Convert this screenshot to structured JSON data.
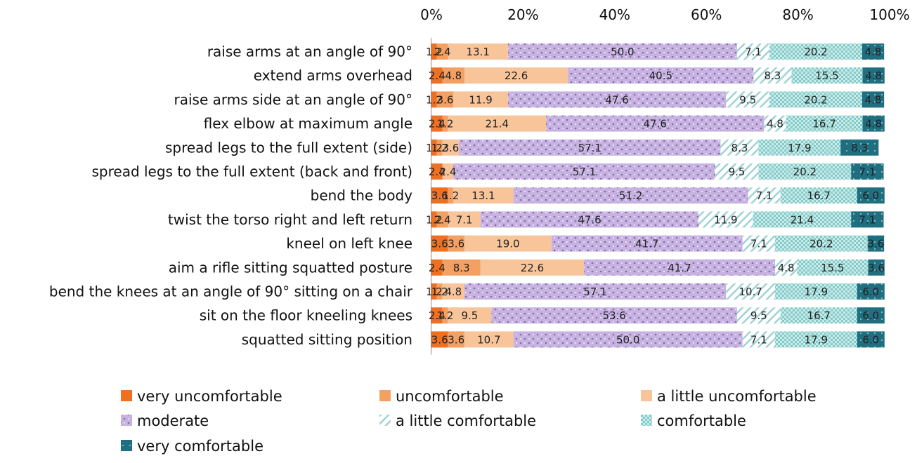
{
  "chart_data": {
    "type": "bar",
    "orientation": "horizontal",
    "stacked": "100%",
    "xlim": [
      0,
      100
    ],
    "x_ticks": [
      "0%",
      "20%",
      "40%",
      "60%",
      "80%",
      "100%"
    ],
    "categories": [
      "raise arms at an angle of 90°",
      "extend arms overhead",
      "raise arms side at an angle of 90°",
      "flex elbow at maximum angle",
      "spread legs to the full extent (side)",
      "spread legs to the full extent (back and front)",
      "bend the body",
      "twist the torso right and left return",
      "kneel on left knee",
      "aim a rifle sitting squatted posture",
      "bend the knees at an angle of 90° sitting on a chair",
      "sit on the floor kneeling knees",
      "squatted sitting position"
    ],
    "series": [
      {
        "name": "very uncomfortable",
        "color": "#f07022",
        "pattern": "solid",
        "values": [
          1.2,
          2.4,
          1.2,
          2.4,
          1.2,
          2.4,
          3.6,
          1.2,
          3.6,
          2.4,
          1.2,
          2.4,
          3.6
        ]
      },
      {
        "name": "uncomfortable",
        "color": "#f4a062",
        "pattern": "solid",
        "values": [
          2.4,
          4.8,
          3.6,
          1.2,
          1.2,
          0.0,
          1.2,
          2.4,
          3.6,
          8.3,
          1.2,
          1.2,
          3.6
        ]
      },
      {
        "name": "a little uncomfortable",
        "color": "#f8c59b",
        "pattern": "solid",
        "values": [
          13.1,
          22.6,
          11.9,
          21.4,
          3.6,
          2.4,
          13.1,
          7.1,
          19.0,
          22.6,
          4.8,
          9.5,
          10.7
        ]
      },
      {
        "name": "moderate",
        "color": "#b9a0d6",
        "pattern": "dots",
        "values": [
          50.0,
          40.5,
          47.6,
          47.6,
          57.1,
          57.1,
          51.2,
          47.6,
          41.7,
          41.7,
          57.1,
          53.6,
          50.0
        ]
      },
      {
        "name": "a little comfortable",
        "color": "#bde3e3",
        "pattern": "hatch",
        "values": [
          7.1,
          8.3,
          9.5,
          4.8,
          8.3,
          9.5,
          7.1,
          11.9,
          7.1,
          4.8,
          10.7,
          9.5,
          7.1
        ]
      },
      {
        "name": "comfortable",
        "color": "#77c6c4",
        "pattern": "check",
        "values": [
          20.2,
          15.5,
          20.2,
          16.7,
          17.9,
          20.2,
          16.7,
          21.4,
          20.2,
          15.5,
          17.9,
          16.7,
          17.9
        ]
      },
      {
        "name": "very comfortable",
        "color": "#1f6f80",
        "pattern": "solid-dots",
        "values": [
          4.8,
          4.8,
          4.8,
          4.8,
          8.3,
          7.1,
          6.0,
          7.1,
          3.6,
          3.6,
          6.0,
          6.0,
          6.0
        ]
      }
    ],
    "legend_position": "bottom",
    "grid": false
  }
}
